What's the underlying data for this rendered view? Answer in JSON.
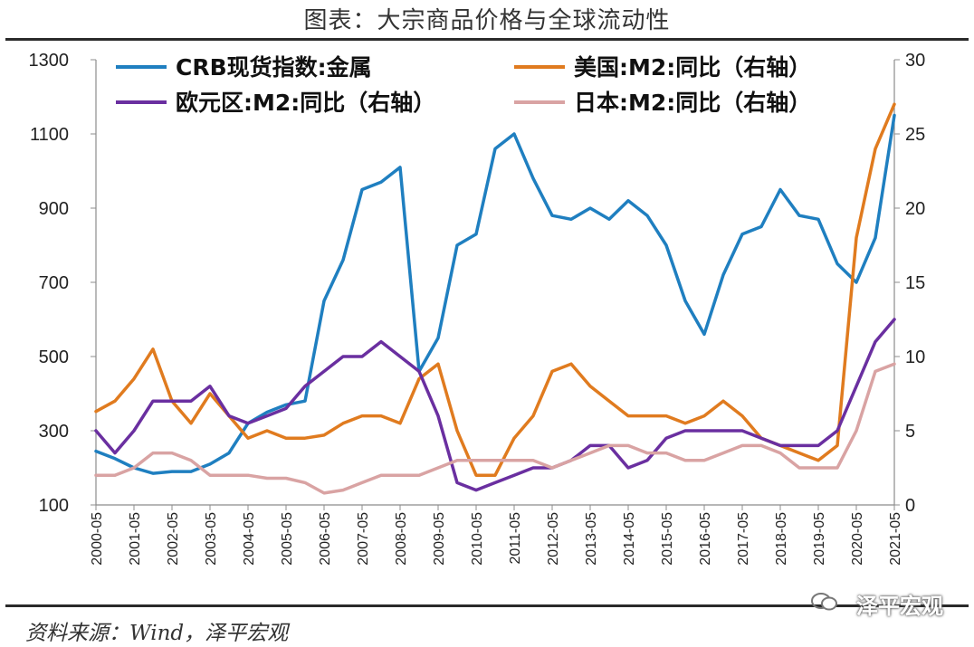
{
  "title": "图表：大宗商品价格与全球流动性",
  "source": "资料来源：Wind，泽平宏观",
  "watermark": "泽平宏观",
  "chart_data": {
    "type": "line",
    "x": [
      "2000-05",
      "2000-11",
      "2001-05",
      "2001-11",
      "2002-05",
      "2002-11",
      "2003-05",
      "2003-11",
      "2004-05",
      "2004-11",
      "2005-05",
      "2005-11",
      "2006-05",
      "2006-11",
      "2007-05",
      "2007-11",
      "2008-05",
      "2008-11",
      "2009-05",
      "2009-11",
      "2010-05",
      "2010-11",
      "2011-05",
      "2011-11",
      "2012-05",
      "2012-11",
      "2013-05",
      "2013-11",
      "2014-05",
      "2014-11",
      "2015-05",
      "2015-11",
      "2016-05",
      "2016-11",
      "2017-05",
      "2017-11",
      "2018-05",
      "2018-11",
      "2019-05",
      "2019-11",
      "2020-05",
      "2020-11",
      "2021-05"
    ],
    "xticks": [
      "2000-05",
      "2001-05",
      "2002-05",
      "2003-05",
      "2004-05",
      "2005-05",
      "2006-05",
      "2007-05",
      "2008-05",
      "2009-05",
      "2010-05",
      "2011-05",
      "2012-05",
      "2013-05",
      "2014-05",
      "2015-05",
      "2016-05",
      "2017-05",
      "2018-05",
      "2019-05",
      "2020-05",
      "2021-05"
    ],
    "y_left_ticks": [
      100,
      300,
      500,
      700,
      900,
      1100,
      1300
    ],
    "y_right_ticks": [
      0,
      5,
      10,
      15,
      20,
      25,
      30
    ],
    "ylim_left": [
      100,
      1300
    ],
    "ylim_right": [
      0,
      30
    ],
    "grid": false,
    "legend_position": "top",
    "series": [
      {
        "name": "CRB现货指数:金属",
        "axis": "left",
        "color": "#1f7fc0",
        "values": [
          245,
          225,
          200,
          185,
          190,
          190,
          210,
          240,
          320,
          350,
          370,
          380,
          650,
          760,
          950,
          970,
          1010,
          460,
          550,
          800,
          830,
          1060,
          1100,
          980,
          880,
          870,
          900,
          870,
          920,
          880,
          800,
          650,
          560,
          720,
          830,
          850,
          950,
          880,
          870,
          750,
          700,
          820,
          1150
        ]
      },
      {
        "name": "美国:M2:同比（右轴）",
        "axis": "right",
        "color": "#e07b1f",
        "values": [
          6.3,
          7,
          8.5,
          10.5,
          7,
          5.5,
          7.5,
          6,
          4.5,
          5,
          4.5,
          4.5,
          4.7,
          5.5,
          6,
          6,
          5.5,
          8.5,
          9.5,
          5,
          2,
          2,
          4.5,
          6,
          9,
          9.5,
          8,
          7,
          6,
          6,
          6,
          5.5,
          6,
          7,
          6,
          4.5,
          4,
          3.5,
          3,
          4,
          18,
          24,
          27
        ]
      },
      {
        "name": "欧元区:M2:同比（右轴）",
        "axis": "right",
        "color": "#6a2fa0",
        "values": [
          5,
          3.5,
          5,
          7,
          7,
          7,
          8,
          6,
          5.5,
          6,
          6.5,
          8,
          9,
          10,
          10,
          11,
          10,
          9,
          6,
          1.5,
          1,
          1.5,
          2,
          2.5,
          2.5,
          3,
          4,
          4,
          2.5,
          3,
          4.5,
          5,
          5,
          5,
          5,
          4.5,
          4,
          4,
          4,
          5,
          8,
          11,
          12.5
        ]
      },
      {
        "name": "日本:M2:同比（右轴）",
        "axis": "right",
        "color": "#d9a3a3",
        "values": [
          2,
          2,
          2.5,
          3.5,
          3.5,
          3,
          2,
          2,
          2,
          1.8,
          1.8,
          1.5,
          0.8,
          1,
          1.5,
          2,
          2,
          2,
          2.5,
          3,
          3,
          3,
          3,
          3,
          2.5,
          3,
          3.5,
          4,
          4,
          3.5,
          3.5,
          3,
          3,
          3.5,
          4,
          4,
          3.5,
          2.5,
          2.5,
          2.5,
          5,
          9,
          9.5
        ]
      }
    ]
  }
}
